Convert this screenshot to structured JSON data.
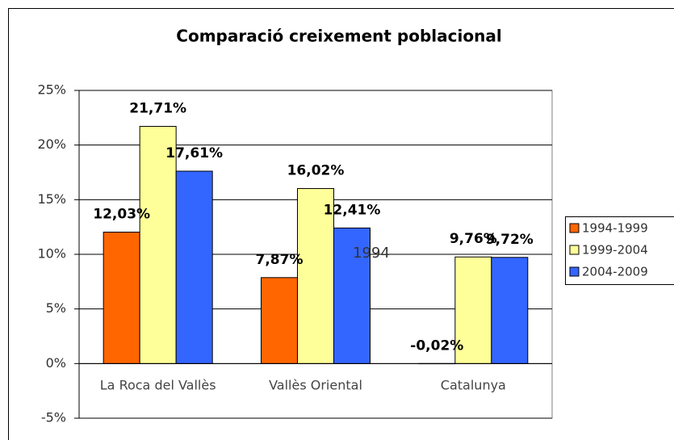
{
  "chart_data": {
    "type": "bar",
    "title": "Comparació creixement poblacional",
    "categories": [
      "La Roca del Vallès",
      "Vallès Oriental",
      "Catalunya"
    ],
    "series": [
      {
        "name": "1994-1999",
        "color": "#ff6600",
        "values": [
          12.03,
          7.87,
          -0.02
        ],
        "value_labels": [
          "12,03%",
          "7,87%",
          "-0,02%"
        ]
      },
      {
        "name": "1999-2004",
        "color": "#ffff99",
        "values": [
          21.71,
          16.02,
          9.76
        ],
        "value_labels": [
          "21,71%",
          "16,02%",
          "9,76%"
        ]
      },
      {
        "name": "2004-2009",
        "color": "#3366ff",
        "values": [
          17.61,
          12.41,
          9.72
        ],
        "value_labels": [
          "17,61%",
          "12,41%",
          "9,72%"
        ]
      }
    ],
    "annotation": "1994",
    "ylim": [
      -5,
      25
    ],
    "yticks": [
      {
        "value": -5,
        "label": "-5%"
      },
      {
        "value": 0,
        "label": "0%"
      },
      {
        "value": 5,
        "label": "5%"
      },
      {
        "value": 10,
        "label": "10%"
      },
      {
        "value": 15,
        "label": "15%"
      },
      {
        "value": 20,
        "label": "20%"
      },
      {
        "value": 25,
        "label": "25%"
      }
    ],
    "grid": true,
    "legend": "right"
  }
}
